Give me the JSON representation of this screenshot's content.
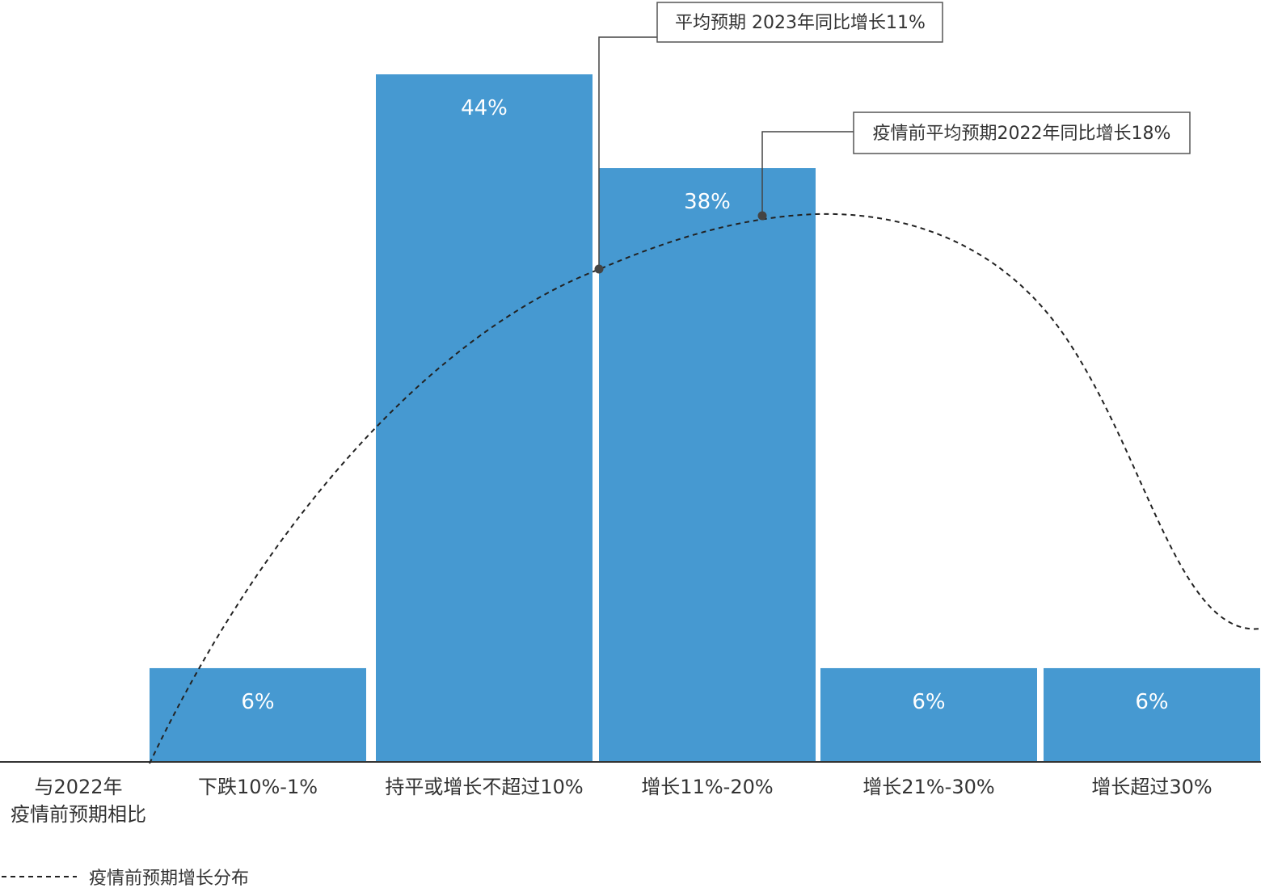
{
  "chart_data": {
    "type": "bar",
    "row_label_lines": [
      "与2022年",
      "疫情前预期相比"
    ],
    "categories": [
      "下跌10%-1%",
      "持平或增长不超过10%",
      "增长11%-20%",
      "增长21%-30%",
      "增长超过30%"
    ],
    "values": [
      6,
      44,
      38,
      6,
      6
    ],
    "value_labels": [
      "6%",
      "44%",
      "38%",
      "6%",
      "6%"
    ],
    "ylim": [
      0,
      44
    ],
    "bar_color": "#4699D1",
    "curve": {
      "name": "疫情前预期增长分布",
      "style": "dashed",
      "color": "#222222"
    },
    "annotations": [
      {
        "text": "平均预期 2023年同比增长11%"
      },
      {
        "text": "疫情前平均预期2022年同比增长18%"
      }
    ],
    "legend": {
      "position": "bottom-left",
      "entries": [
        "疫情前预期增长分布"
      ]
    }
  }
}
